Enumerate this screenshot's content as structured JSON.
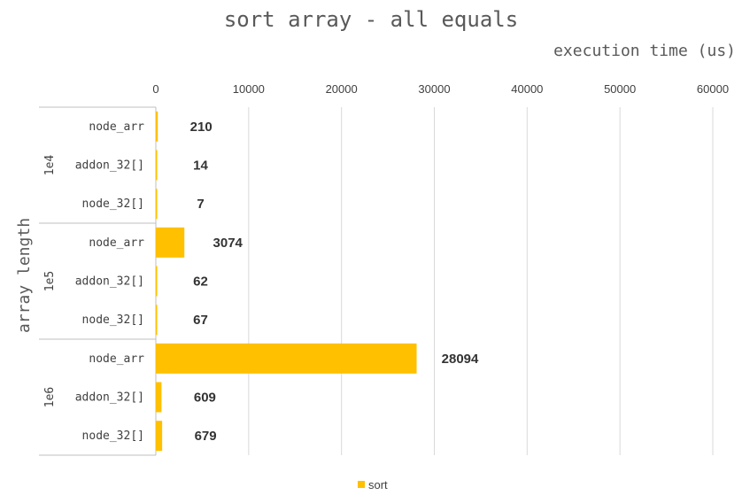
{
  "chart_data": {
    "type": "bar",
    "orientation": "horizontal",
    "title": "sort array - all equals",
    "xlabel": "execution time (us)",
    "ylabel": "array length",
    "xlim": [
      0,
      60000
    ],
    "x_ticks": [
      "0",
      "10000",
      "20000",
      "30000",
      "40000",
      "50000",
      "60000"
    ],
    "groups": [
      {
        "label": "1e4",
        "categories": [
          "node_arr",
          "addon_32[]",
          "node_32[]"
        ],
        "values": [
          210,
          14,
          7
        ]
      },
      {
        "label": "1e5",
        "categories": [
          "node_arr",
          "addon_32[]",
          "node_32[]"
        ],
        "values": [
          3074,
          62,
          67
        ]
      },
      {
        "label": "1e6",
        "categories": [
          "node_arr",
          "addon_32[]",
          "node_32[]"
        ],
        "values": [
          28094,
          609,
          679
        ]
      }
    ],
    "series": [
      {
        "name": "sort",
        "color": "#FFC000"
      }
    ],
    "grid": true,
    "legend": "bottom"
  }
}
